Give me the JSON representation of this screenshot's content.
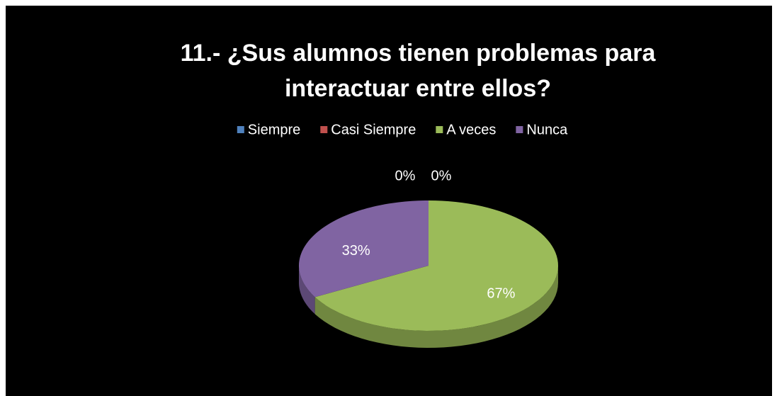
{
  "chart_data": {
    "type": "pie",
    "title": "11.- ¿Sus alumnos tienen problemas para interactuar entre ellos?",
    "categories": [
      "Siempre",
      "Casi Siempre",
      "A veces",
      "Nunca"
    ],
    "values": [
      0,
      0,
      67,
      33
    ],
    "value_labels": [
      "0%",
      "0%",
      "67%",
      "33%"
    ],
    "colors": [
      "#4f81bd",
      "#c0504d",
      "#9bbb59",
      "#8064a2"
    ],
    "legend": "top"
  }
}
